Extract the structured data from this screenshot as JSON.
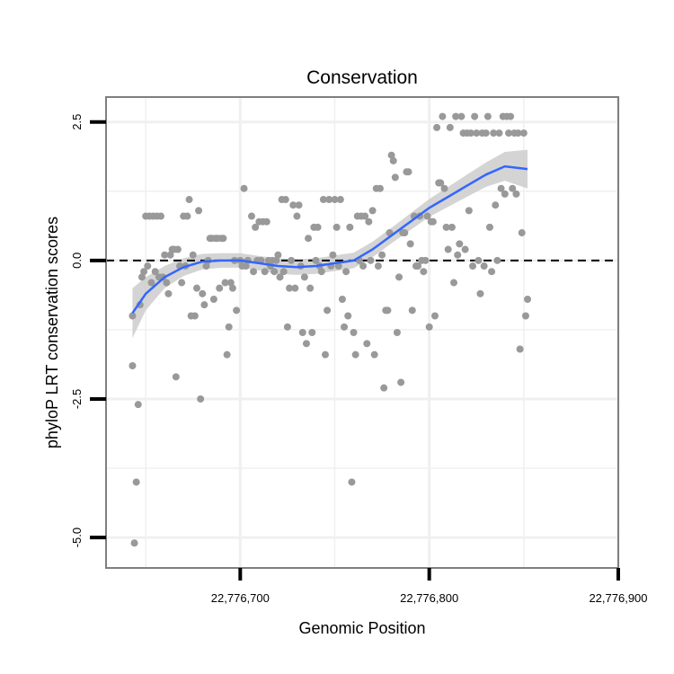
{
  "chart_data": {
    "type": "scatter",
    "title": "Conservation",
    "xlabel": "Genomic Position",
    "ylabel": "phyloP LRT conservation scores",
    "xlim": [
      22776629,
      22776900
    ],
    "ylim": [
      -5.55,
      2.95
    ],
    "xticks": [
      {
        "value": 22776700,
        "label": "22,776,700"
      },
      {
        "value": 22776800,
        "label": "22,776,800"
      },
      {
        "value": 22776900,
        "label": "22,776,900"
      }
    ],
    "yticks": [
      {
        "value": 2.5,
        "label": "2.5"
      },
      {
        "value": 0.0,
        "label": "0.0"
      },
      {
        "value": -2.5,
        "label": "-2.5"
      },
      {
        "value": -5.0,
        "label": "-5.0"
      }
    ],
    "minor_xgrid": [
      22776650,
      22776750,
      22776850
    ],
    "minor_ygrid": [
      1.25,
      -1.25,
      -3.75
    ],
    "reference_line": {
      "y": 0,
      "style": "dashed"
    },
    "colors": {
      "points": "#999999",
      "smooth": "#3366FF",
      "band": "#cccccc",
      "grid": "#f0f0f0",
      "border": "#7f7f7f"
    },
    "points": [
      [
        22776643,
        -1.0
      ],
      [
        22776643,
        -1.9
      ],
      [
        22776644,
        -5.1
      ],
      [
        22776645,
        -4.0
      ],
      [
        22776646,
        -2.6
      ],
      [
        22776647,
        -0.8
      ],
      [
        22776648,
        -0.3
      ],
      [
        22776649,
        -0.2
      ],
      [
        22776650,
        0.8
      ],
      [
        22776651,
        -0.1
      ],
      [
        22776652,
        0.8
      ],
      [
        22776653,
        -0.4
      ],
      [
        22776654,
        0.8
      ],
      [
        22776655,
        -0.2
      ],
      [
        22776656,
        0.8
      ],
      [
        22776657,
        -0.3
      ],
      [
        22776658,
        0.8
      ],
      [
        22776659,
        -0.3
      ],
      [
        22776660,
        0.1
      ],
      [
        22776661,
        -0.4
      ],
      [
        22776662,
        -0.6
      ],
      [
        22776663,
        0.1
      ],
      [
        22776664,
        0.2
      ],
      [
        22776665,
        0.2
      ],
      [
        22776666,
        -2.1
      ],
      [
        22776667,
        0.2
      ],
      [
        22776668,
        -0.1
      ],
      [
        22776669,
        -0.4
      ],
      [
        22776670,
        0.8
      ],
      [
        22776671,
        -0.1
      ],
      [
        22776672,
        0.8
      ],
      [
        22776673,
        1.1
      ],
      [
        22776674,
        -1.0
      ],
      [
        22776675,
        0.1
      ],
      [
        22776676,
        -1.0
      ],
      [
        22776677,
        -0.5
      ],
      [
        22776678,
        0.9
      ],
      [
        22776679,
        -2.5
      ],
      [
        22776680,
        -0.6
      ],
      [
        22776681,
        -0.8
      ],
      [
        22776682,
        -0.1
      ],
      [
        22776683,
        0.0
      ],
      [
        22776684,
        0.4
      ],
      [
        22776685,
        0.4
      ],
      [
        22776686,
        -0.7
      ],
      [
        22776687,
        0.4
      ],
      [
        22776688,
        0.4
      ],
      [
        22776689,
        -0.5
      ],
      [
        22776690,
        0.4
      ],
      [
        22776691,
        0.4
      ],
      [
        22776692,
        -0.4
      ],
      [
        22776693,
        -1.7
      ],
      [
        22776694,
        -1.2
      ],
      [
        22776695,
        -0.4
      ],
      [
        22776696,
        -0.5
      ],
      [
        22776697,
        0.0
      ],
      [
        22776698,
        -0.9
      ],
      [
        22776700,
        0.0
      ],
      [
        22776701,
        -0.1
      ],
      [
        22776702,
        1.3
      ],
      [
        22776703,
        -0.1
      ],
      [
        22776704,
        0.0
      ],
      [
        22776706,
        0.8
      ],
      [
        22776707,
        -0.2
      ],
      [
        22776708,
        0.6
      ],
      [
        22776709,
        0.0
      ],
      [
        22776710,
        0.7
      ],
      [
        22776711,
        0.0
      ],
      [
        22776712,
        0.7
      ],
      [
        22776713,
        -0.2
      ],
      [
        22776714,
        0.7
      ],
      [
        22776715,
        0.0
      ],
      [
        22776716,
        -0.1
      ],
      [
        22776717,
        0.0
      ],
      [
        22776718,
        -0.2
      ],
      [
        22776719,
        0.0
      ],
      [
        22776720,
        0.1
      ],
      [
        22776721,
        -0.3
      ],
      [
        22776722,
        1.1
      ],
      [
        22776723,
        -0.2
      ],
      [
        22776724,
        1.1
      ],
      [
        22776725,
        -1.2
      ],
      [
        22776726,
        -0.5
      ],
      [
        22776727,
        0.0
      ],
      [
        22776728,
        1.0
      ],
      [
        22776729,
        -0.5
      ],
      [
        22776730,
        0.8
      ],
      [
        22776731,
        1.0
      ],
      [
        22776732,
        -0.1
      ],
      [
        22776733,
        -1.3
      ],
      [
        22776734,
        -0.3
      ],
      [
        22776735,
        -1.5
      ],
      [
        22776736,
        0.4
      ],
      [
        22776737,
        -0.5
      ],
      [
        22776738,
        -1.3
      ],
      [
        22776739,
        0.6
      ],
      [
        22776740,
        0.0
      ],
      [
        22776741,
        0.6
      ],
      [
        22776742,
        -0.1
      ],
      [
        22776743,
        -0.2
      ],
      [
        22776744,
        1.1
      ],
      [
        22776745,
        -1.7
      ],
      [
        22776746,
        -0.9
      ],
      [
        22776747,
        1.1
      ],
      [
        22776748,
        -0.1
      ],
      [
        22776749,
        0.1
      ],
      [
        22776750,
        1.1
      ],
      [
        22776751,
        0.6
      ],
      [
        22776752,
        -0.1
      ],
      [
        22776753,
        1.1
      ],
      [
        22776754,
        -0.7
      ],
      [
        22776755,
        -1.2
      ],
      [
        22776756,
        -0.2
      ],
      [
        22776757,
        -1.0
      ],
      [
        22776758,
        0.6
      ],
      [
        22776759,
        -4.0
      ],
      [
        22776760,
        -1.3
      ],
      [
        22776761,
        -1.7
      ],
      [
        22776762,
        0.8
      ],
      [
        22776763,
        0.0
      ],
      [
        22776764,
        0.8
      ],
      [
        22776765,
        -0.1
      ],
      [
        22776766,
        0.8
      ],
      [
        22776767,
        -1.5
      ],
      [
        22776768,
        0.7
      ],
      [
        22776769,
        0.0
      ],
      [
        22776770,
        0.9
      ],
      [
        22776771,
        -1.7
      ],
      [
        22776772,
        1.3
      ],
      [
        22776773,
        -0.1
      ],
      [
        22776774,
        1.3
      ],
      [
        22776775,
        0.1
      ],
      [
        22776776,
        -2.3
      ],
      [
        22776777,
        -0.9
      ],
      [
        22776778,
        -0.9
      ],
      [
        22776779,
        0.5
      ],
      [
        22776780,
        1.9
      ],
      [
        22776781,
        1.8
      ],
      [
        22776782,
        1.5
      ],
      [
        22776783,
        -1.3
      ],
      [
        22776784,
        -0.3
      ],
      [
        22776785,
        -2.2
      ],
      [
        22776786,
        0.5
      ],
      [
        22776787,
        0.5
      ],
      [
        22776788,
        1.6
      ],
      [
        22776789,
        1.6
      ],
      [
        22776790,
        0.3
      ],
      [
        22776791,
        -0.9
      ],
      [
        22776792,
        0.8
      ],
      [
        22776793,
        -0.1
      ],
      [
        22776794,
        -0.1
      ],
      [
        22776795,
        0.8
      ],
      [
        22776796,
        0.0
      ],
      [
        22776797,
        -0.2
      ],
      [
        22776798,
        0.0
      ],
      [
        22776799,
        0.8
      ],
      [
        22776800,
        -1.2
      ],
      [
        22776801,
        0.7
      ],
      [
        22776802,
        0.7
      ],
      [
        22776803,
        -1.0
      ],
      [
        22776804,
        2.4
      ],
      [
        22776805,
        1.4
      ],
      [
        22776806,
        1.4
      ],
      [
        22776807,
        2.6
      ],
      [
        22776808,
        1.3
      ],
      [
        22776809,
        0.6
      ],
      [
        22776810,
        0.2
      ],
      [
        22776811,
        2.4
      ],
      [
        22776812,
        0.6
      ],
      [
        22776813,
        -0.4
      ],
      [
        22776814,
        2.6
      ],
      [
        22776815,
        0.1
      ],
      [
        22776816,
        0.3
      ],
      [
        22776817,
        2.6
      ],
      [
        22776818,
        2.3
      ],
      [
        22776819,
        0.2
      ],
      [
        22776820,
        2.3
      ],
      [
        22776821,
        0.9
      ],
      [
        22776822,
        2.3
      ],
      [
        22776823,
        -0.1
      ],
      [
        22776824,
        2.6
      ],
      [
        22776825,
        2.3
      ],
      [
        22776826,
        0.0
      ],
      [
        22776827,
        -0.6
      ],
      [
        22776828,
        2.3
      ],
      [
        22776829,
        -0.1
      ],
      [
        22776830,
        2.3
      ],
      [
        22776831,
        2.6
      ],
      [
        22776832,
        0.6
      ],
      [
        22776833,
        -0.2
      ],
      [
        22776834,
        2.3
      ],
      [
        22776835,
        1.0
      ],
      [
        22776836,
        0.0
      ],
      [
        22776837,
        2.3
      ],
      [
        22776838,
        1.3
      ],
      [
        22776839,
        2.6
      ],
      [
        22776840,
        1.2
      ],
      [
        22776841,
        2.6
      ],
      [
        22776842,
        2.3
      ],
      [
        22776843,
        2.6
      ],
      [
        22776844,
        1.3
      ],
      [
        22776845,
        2.3
      ],
      [
        22776846,
        1.2
      ],
      [
        22776847,
        2.3
      ],
      [
        22776848,
        -1.6
      ],
      [
        22776849,
        0.5
      ],
      [
        22776850,
        2.3
      ],
      [
        22776851,
        -1.0
      ],
      [
        22776852,
        -0.7
      ]
    ],
    "smooth": [
      [
        22776643,
        -0.95
      ],
      [
        22776650,
        -0.6
      ],
      [
        22776660,
        -0.3
      ],
      [
        22776670,
        -0.12
      ],
      [
        22776680,
        -0.02
      ],
      [
        22776690,
        0.0
      ],
      [
        22776700,
        0.0
      ],
      [
        22776710,
        -0.05
      ],
      [
        22776720,
        -0.1
      ],
      [
        22776730,
        -0.12
      ],
      [
        22776740,
        -0.1
      ],
      [
        22776750,
        -0.05
      ],
      [
        22776760,
        0.0
      ],
      [
        22776770,
        0.2
      ],
      [
        22776780,
        0.45
      ],
      [
        22776790,
        0.7
      ],
      [
        22776800,
        0.95
      ],
      [
        22776810,
        1.15
      ],
      [
        22776820,
        1.35
      ],
      [
        22776830,
        1.55
      ],
      [
        22776840,
        1.7
      ],
      [
        22776852,
        1.65
      ]
    ],
    "smooth_se": [
      0.45,
      0.3,
      0.2,
      0.16,
      0.14,
      0.13,
      0.13,
      0.13,
      0.14,
      0.14,
      0.14,
      0.14,
      0.14,
      0.14,
      0.14,
      0.15,
      0.16,
      0.18,
      0.2,
      0.22,
      0.26,
      0.35
    ]
  }
}
